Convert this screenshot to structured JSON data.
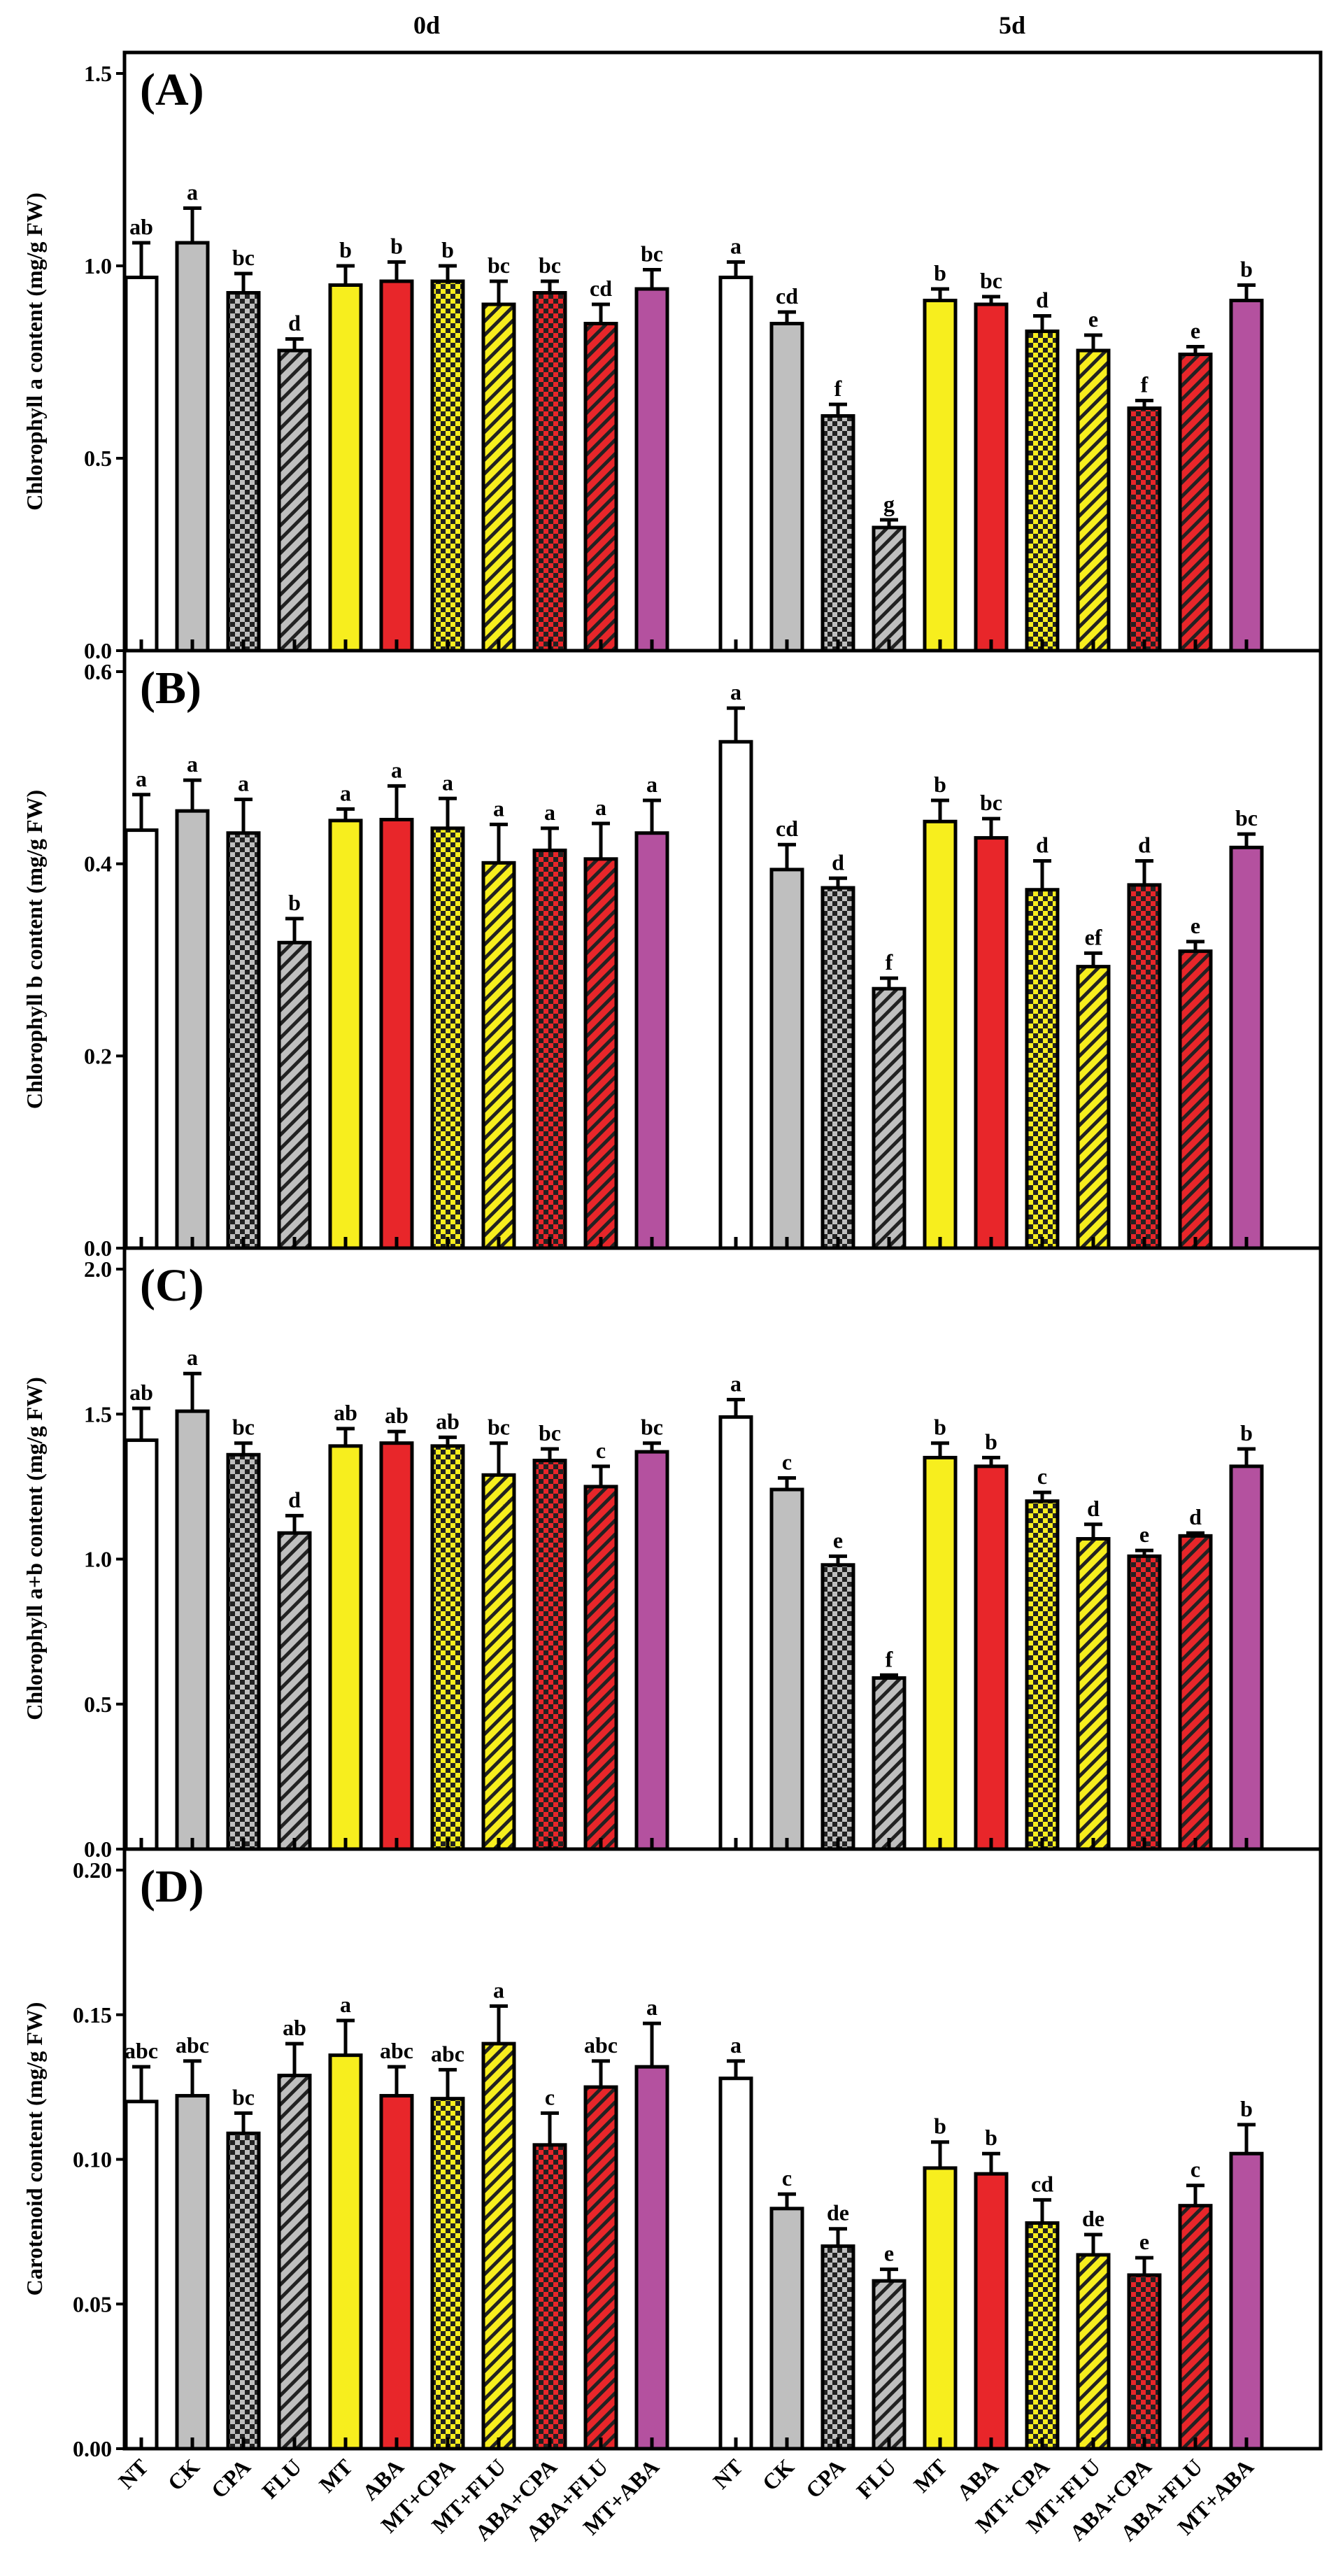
{
  "groups": [
    "0d",
    "5d"
  ],
  "categories": [
    "NT",
    "CK",
    "CPA",
    "FLU",
    "MT",
    "ABA",
    "MT+CPA",
    "MT+FLU",
    "ABA+CPA",
    "ABA+FLU",
    "MT+ABA"
  ],
  "colors": {
    "NT": "#ffffff",
    "CK": "#bfbfbf",
    "CPA": "#bfbfbf",
    "FLU": "#bfbfbf",
    "MT": "#f7ee1e",
    "ABA": "#e8262a",
    "MT+CPA": "#f7ee1e",
    "MT+FLU": "#f7ee1e",
    "ABA+CPA": "#e8262a",
    "ABA+FLU": "#e8262a",
    "MT+ABA": "#b4519f"
  },
  "patterns": {
    "NT": "solid",
    "CK": "solid",
    "CPA": "checker",
    "FLU": "hatch",
    "MT": "solid",
    "ABA": "solid",
    "MT+CPA": "checker",
    "MT+FLU": "hatch",
    "ABA+CPA": "checker",
    "ABA+FLU": "hatch",
    "MT+ABA": "solid"
  },
  "chart_data": [
    {
      "type": "bar",
      "panel": "(A)",
      "ylabel": "Chlorophyll a content (mg/g FW)",
      "ylim": [
        0,
        1.5
      ],
      "yticks": [
        "0.0",
        "0.5",
        "1.0",
        "1.5"
      ],
      "series": [
        {
          "name": "0d",
          "values": [
            0.97,
            1.06,
            0.93,
            0.78,
            0.95,
            0.96,
            0.96,
            0.9,
            0.93,
            0.85,
            0.94
          ],
          "errors": [
            0.09,
            0.09,
            0.05,
            0.03,
            0.05,
            0.05,
            0.04,
            0.06,
            0.03,
            0.05,
            0.05
          ],
          "letters": [
            "ab",
            "a",
            "bc",
            "d",
            "b",
            "b",
            "b",
            "bc",
            "bc",
            "cd",
            "bc"
          ]
        },
        {
          "name": "5d",
          "values": [
            0.97,
            0.85,
            0.61,
            0.32,
            0.91,
            0.9,
            0.83,
            0.78,
            0.63,
            0.77,
            0.91
          ],
          "errors": [
            0.04,
            0.03,
            0.03,
            0.02,
            0.03,
            0.02,
            0.04,
            0.04,
            0.02,
            0.02,
            0.04
          ],
          "letters": [
            "a",
            "cd",
            "f",
            "g",
            "b",
            "bc",
            "d",
            "e",
            "f",
            "e",
            "b"
          ]
        }
      ]
    },
    {
      "type": "bar",
      "panel": "(B)",
      "ylabel": "Chlorophyll b content (mg/g FW)",
      "ylim": [
        0,
        0.6
      ],
      "yticks": [
        "0.0",
        "0.2",
        "0.4",
        "0.6"
      ],
      "series": [
        {
          "name": "0d",
          "values": [
            0.435,
            0.455,
            0.432,
            0.318,
            0.445,
            0.446,
            0.437,
            0.401,
            0.414,
            0.405,
            0.432
          ],
          "errors": [
            0.037,
            0.032,
            0.035,
            0.025,
            0.012,
            0.035,
            0.031,
            0.04,
            0.023,
            0.037,
            0.034
          ],
          "letters": [
            "a",
            "a",
            "a",
            "b",
            "a",
            "a",
            "a",
            "a",
            "a",
            "a",
            "a"
          ]
        },
        {
          "name": "5d",
          "values": [
            0.527,
            0.394,
            0.375,
            0.27,
            0.444,
            0.427,
            0.373,
            0.293,
            0.378,
            0.309,
            0.417
          ],
          "errors": [
            0.035,
            0.026,
            0.01,
            0.011,
            0.022,
            0.02,
            0.03,
            0.014,
            0.025,
            0.01,
            0.014
          ],
          "letters": [
            "a",
            "cd",
            "d",
            "f",
            "b",
            "bc",
            "d",
            "ef",
            "d",
            "e",
            "bc"
          ]
        }
      ]
    },
    {
      "type": "bar",
      "panel": "(C)",
      "ylabel": "Chlorophyll a+b content (mg/g FW)",
      "ylim": [
        0,
        2.0
      ],
      "yticks": [
        "0.0",
        "0.5",
        "1.0",
        "1.5",
        "2.0"
      ],
      "series": [
        {
          "name": "0d",
          "values": [
            1.41,
            1.51,
            1.36,
            1.09,
            1.39,
            1.4,
            1.39,
            1.29,
            1.34,
            1.25,
            1.37
          ],
          "errors": [
            0.11,
            0.13,
            0.04,
            0.06,
            0.06,
            0.04,
            0.03,
            0.11,
            0.04,
            0.07,
            0.03
          ],
          "letters": [
            "ab",
            "a",
            "bc",
            "d",
            "ab",
            "ab",
            "ab",
            "bc",
            "bc",
            "c",
            "bc"
          ]
        },
        {
          "name": "5d",
          "values": [
            1.49,
            1.24,
            0.98,
            0.59,
            1.35,
            1.32,
            1.2,
            1.07,
            1.01,
            1.08,
            1.32
          ],
          "errors": [
            0.06,
            0.04,
            0.03,
            0.01,
            0.05,
            0.03,
            0.03,
            0.05,
            0.02,
            0.01,
            0.06
          ],
          "letters": [
            "a",
            "c",
            "e",
            "f",
            "b",
            "b",
            "c",
            "d",
            "e",
            "d",
            "b"
          ]
        }
      ]
    },
    {
      "type": "bar",
      "panel": "(D)",
      "ylabel": "Carotenoid content (mg/g FW)",
      "ylim": [
        0,
        0.2
      ],
      "yticks": [
        "0.00",
        "0.05",
        "0.10",
        "0.15",
        "0.20"
      ],
      "series": [
        {
          "name": "0d",
          "values": [
            0.12,
            0.122,
            0.109,
            0.129,
            0.136,
            0.122,
            0.121,
            0.14,
            0.105,
            0.125,
            0.132
          ],
          "errors": [
            0.012,
            0.012,
            0.007,
            0.011,
            0.012,
            0.01,
            0.01,
            0.013,
            0.011,
            0.009,
            0.015
          ],
          "letters": [
            "abc",
            "abc",
            "bc",
            "ab",
            "a",
            "abc",
            "abc",
            "a",
            "c",
            "abc",
            "a"
          ]
        },
        {
          "name": "5d",
          "values": [
            0.128,
            0.083,
            0.07,
            0.058,
            0.097,
            0.095,
            0.078,
            0.067,
            0.06,
            0.084,
            0.102
          ],
          "errors": [
            0.006,
            0.005,
            0.006,
            0.004,
            0.009,
            0.007,
            0.008,
            0.007,
            0.006,
            0.007,
            0.01
          ],
          "letters": [
            "a",
            "c",
            "de",
            "e",
            "b",
            "b",
            "cd",
            "de",
            "e",
            "c",
            "b"
          ]
        }
      ]
    }
  ]
}
